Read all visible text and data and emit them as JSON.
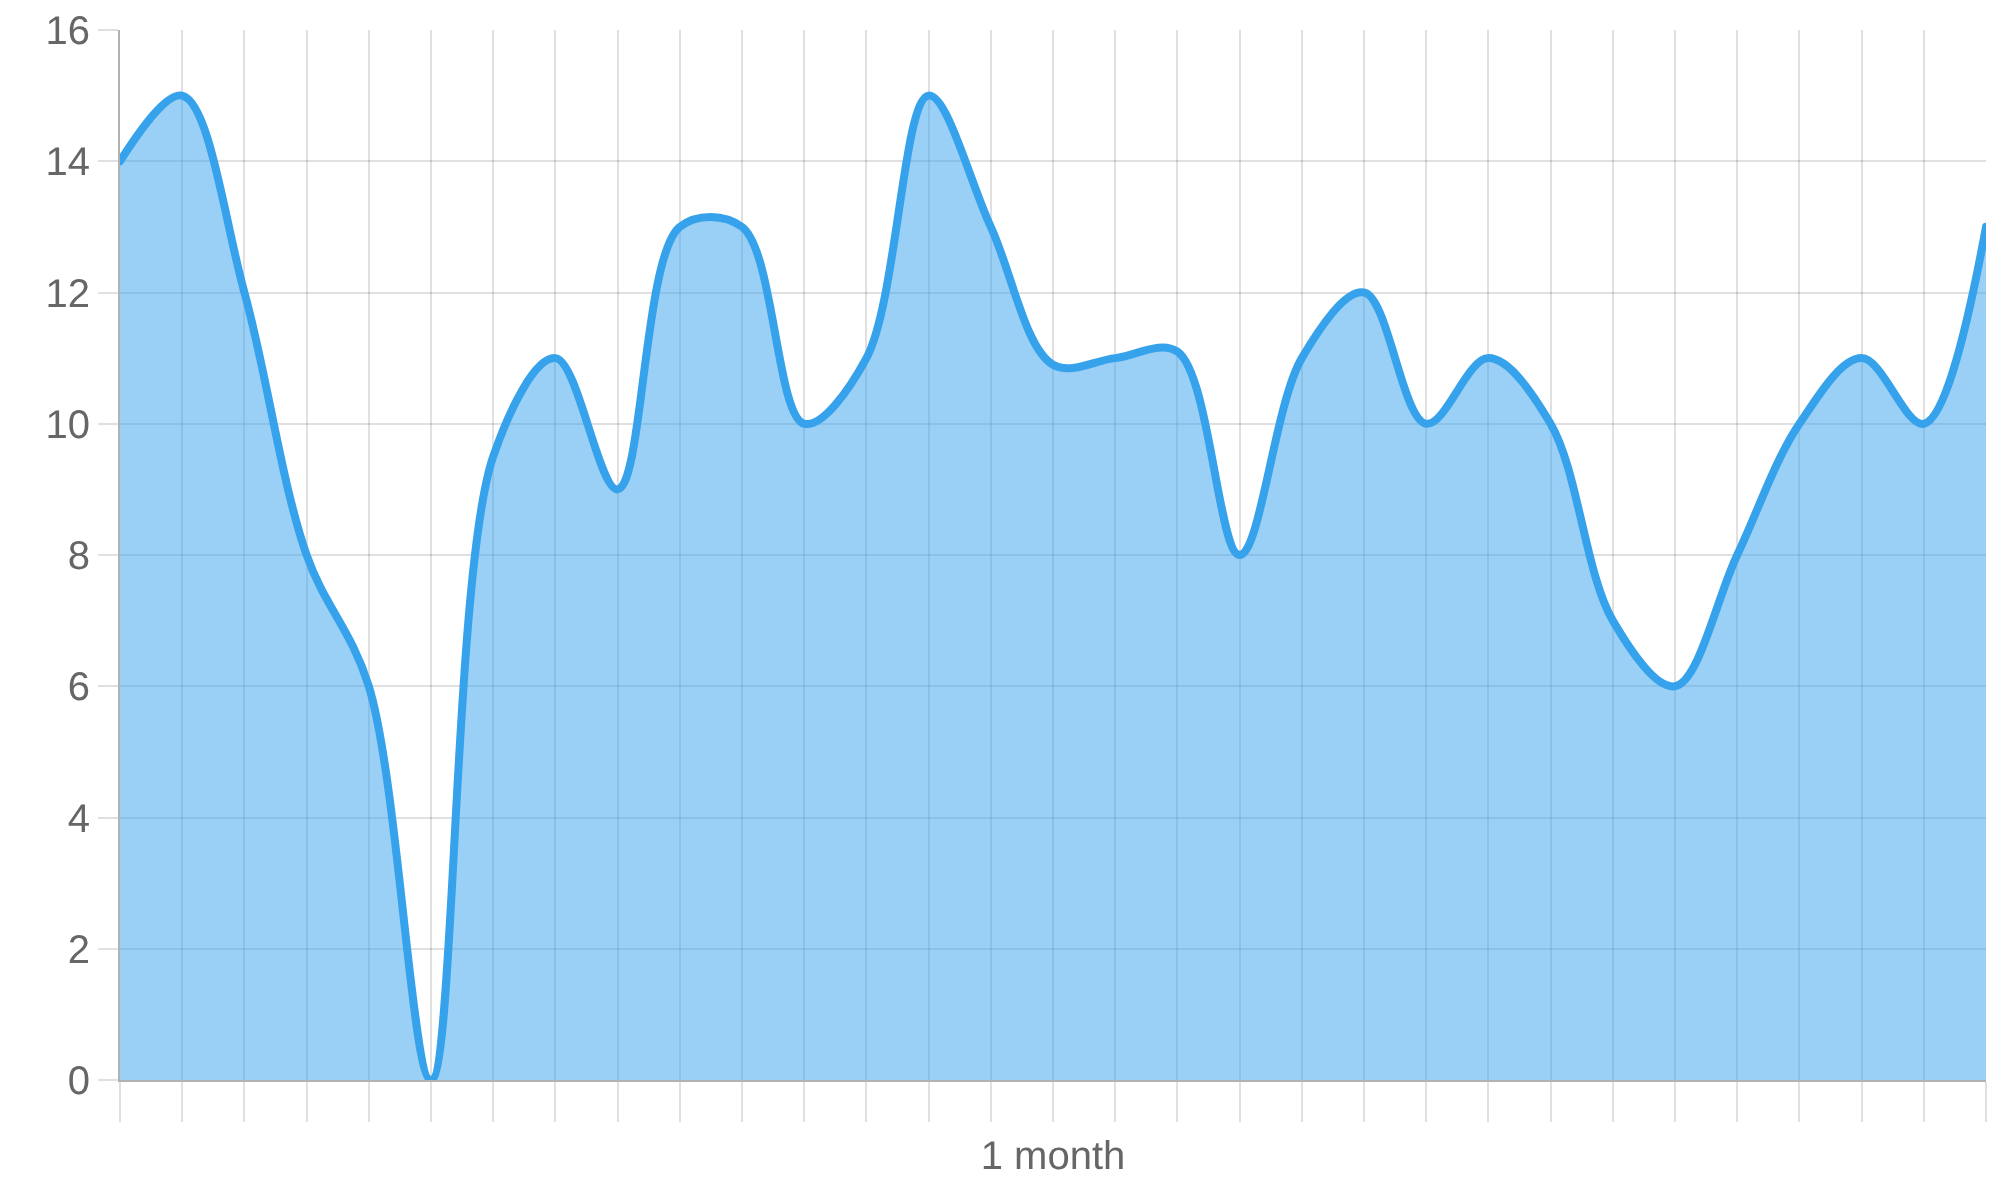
{
  "chart_data": {
    "type": "area",
    "xlabel": "1 month",
    "categories": [
      null,
      null,
      null,
      null,
      null,
      null,
      null,
      null,
      null,
      null,
      null,
      null,
      null,
      null,
      null,
      null,
      null,
      null,
      null,
      null,
      null,
      null,
      null,
      null,
      null,
      null,
      null,
      null,
      null,
      null,
      null
    ],
    "values": [
      14,
      15,
      12,
      8,
      6,
      0,
      9.5,
      11,
      9,
      13,
      13,
      10,
      11,
      15,
      13,
      10.9,
      11,
      11.1,
      8,
      11,
      12,
      10,
      11,
      10,
      7,
      6,
      8,
      10,
      11,
      10,
      13
    ],
    "color": "#36a2eb",
    "ylim": [
      0,
      16
    ],
    "yticks": [
      0,
      2,
      4,
      6,
      8,
      10,
      12,
      14,
      16
    ],
    "grid": true
  }
}
